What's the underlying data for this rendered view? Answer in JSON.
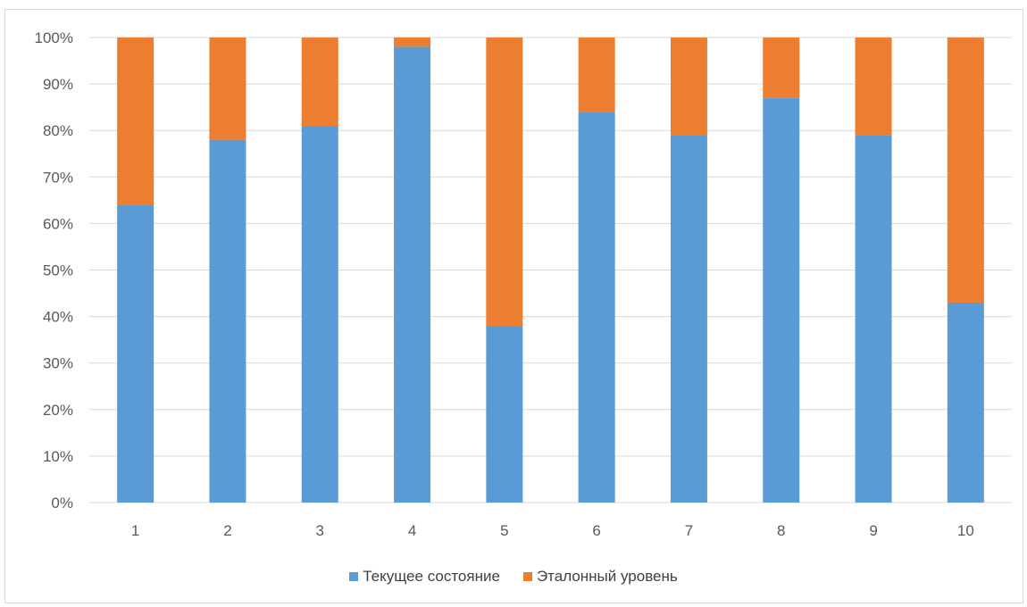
{
  "chart_data": {
    "type": "bar",
    "stacked": true,
    "title": "",
    "xlabel": "",
    "ylabel": "",
    "ylim": [
      0,
      100
    ],
    "y_ticks": [
      "0%",
      "10%",
      "20%",
      "30%",
      "40%",
      "50%",
      "60%",
      "70%",
      "80%",
      "90%",
      "100%"
    ],
    "categories": [
      "1",
      "2",
      "3",
      "4",
      "5",
      "6",
      "7",
      "8",
      "9",
      "10"
    ],
    "series": [
      {
        "name": "Текущее состояние",
        "color": "#5b9bd5",
        "values": [
          64,
          78,
          81,
          98,
          38,
          84,
          79,
          87,
          79,
          43
        ]
      },
      {
        "name": "Эталонный уровень",
        "color": "#ed7d31",
        "values": [
          36,
          22,
          19,
          2,
          62,
          16,
          21,
          13,
          21,
          57
        ]
      }
    ],
    "grid": true,
    "gridline_color": "#d9d9d9",
    "legend_position": "bottom"
  }
}
